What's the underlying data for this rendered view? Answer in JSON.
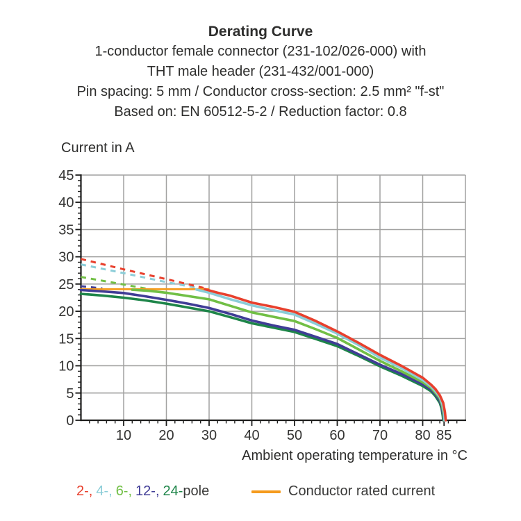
{
  "header": {
    "title": "Derating Curve",
    "line1": "1-conductor female connector (231-102/026-000) with",
    "line2": "THT male header (231-432/001-000)",
    "line3": "Pin spacing: 5 mm / Conductor cross-section: 2.5 mm² \"f-st\"",
    "line4": "Based on: EN 60512-5-2 / Reduction factor: 0.8"
  },
  "legend": {
    "pole_items": [
      {
        "label": "2-,",
        "color": "#e8402d"
      },
      {
        "label": "4-,",
        "color": "#8bcdd8"
      },
      {
        "label": "6-,",
        "color": "#71bf45"
      },
      {
        "label": "12-,",
        "color": "#403c96"
      },
      {
        "label": "24-",
        "color": "#1e8549"
      }
    ],
    "pole_suffix": "pole",
    "rated_label": "Conductor rated current",
    "rated_color": "#f59b1e"
  },
  "chart_data": {
    "type": "line",
    "title": "Derating Curve",
    "xlabel": "Ambient operating temperature in °C",
    "ylabel": "Current in A",
    "x_range": [
      0,
      90
    ],
    "y_range": [
      0,
      45
    ],
    "x_ticks": [
      10,
      20,
      30,
      40,
      50,
      60,
      70,
      80,
      85
    ],
    "y_ticks": [
      0,
      5,
      10,
      15,
      20,
      25,
      30,
      35,
      40,
      45
    ],
    "x_grid_step": 10,
    "y_grid_step": 5,
    "x_minor_step": 2,
    "y_minor_step": 1,
    "grid": true,
    "legend_position": "bottom",
    "colors": {
      "grid": "#a1a1a0",
      "axis": "#1c1c1b",
      "text": "#333332"
    },
    "series": [
      {
        "name": "conductor-rated-current",
        "label": "Conductor rated current",
        "color": "#f59b1e",
        "width": 2.8,
        "points": [
          [
            0,
            24.05
          ],
          [
            29.8,
            24.05
          ]
        ]
      },
      {
        "name": "24-pole",
        "label": "24-pole",
        "color": "#1e8549",
        "width": 3.6,
        "points": [
          [
            0,
            23.2
          ],
          [
            5,
            22.9
          ],
          [
            10,
            22.5
          ],
          [
            15,
            22.0
          ],
          [
            20,
            21.4
          ],
          [
            25,
            20.7
          ],
          [
            30,
            20.0
          ],
          [
            35,
            18.9
          ],
          [
            40,
            17.8
          ],
          [
            45,
            17.0
          ],
          [
            50,
            16.2
          ],
          [
            55,
            14.9
          ],
          [
            60,
            13.6
          ],
          [
            65,
            11.8
          ],
          [
            70,
            9.9
          ],
          [
            75,
            8.2
          ],
          [
            80,
            6.3
          ],
          [
            82,
            5.3
          ],
          [
            83,
            4.4
          ],
          [
            84,
            3.2
          ],
          [
            84.4,
            2.2
          ],
          [
            84.7,
            0.8
          ],
          [
            84.8,
            0
          ]
        ]
      },
      {
        "name": "12-pole",
        "label": "12-pole",
        "color": "#403c96",
        "width": 3.6,
        "dashed_points": [
          [
            0,
            24.6
          ],
          [
            5,
            24.2
          ]
        ],
        "points": [
          [
            0,
            23.9
          ],
          [
            5,
            23.65
          ],
          [
            10,
            23.35
          ],
          [
            15,
            22.75
          ],
          [
            20,
            22.1
          ],
          [
            25,
            21.4
          ],
          [
            30,
            20.6
          ],
          [
            35,
            19.5
          ],
          [
            40,
            18.3
          ],
          [
            45,
            17.4
          ],
          [
            50,
            16.6
          ],
          [
            55,
            15.3
          ],
          [
            60,
            14.0
          ],
          [
            65,
            12.1
          ],
          [
            70,
            10.2
          ],
          [
            75,
            8.5
          ],
          [
            80,
            6.6
          ],
          [
            82,
            5.6
          ],
          [
            83,
            4.7
          ],
          [
            84,
            3.6
          ],
          [
            84.4,
            2.6
          ],
          [
            84.8,
            1.0
          ],
          [
            84.9,
            0
          ]
        ]
      },
      {
        "name": "6-pole",
        "label": "6-pole",
        "color": "#71bf45",
        "width": 3.6,
        "dashed_points": [
          [
            0,
            26.3
          ],
          [
            8,
            25.2
          ],
          [
            16,
            24.05
          ]
        ],
        "points": [
          [
            12,
            23.95
          ],
          [
            16,
            23.75
          ],
          [
            20,
            23.4
          ],
          [
            25,
            22.8
          ],
          [
            30,
            22.2
          ],
          [
            35,
            21.0
          ],
          [
            40,
            19.8
          ],
          [
            45,
            19.0
          ],
          [
            50,
            18.2
          ],
          [
            55,
            16.7
          ],
          [
            60,
            15.1
          ],
          [
            65,
            13.0
          ],
          [
            70,
            10.9
          ],
          [
            75,
            9.0
          ],
          [
            80,
            7.0
          ],
          [
            82,
            5.9
          ],
          [
            83,
            5.0
          ],
          [
            84,
            4.0
          ],
          [
            84.5,
            2.8
          ],
          [
            84.9,
            1.2
          ],
          [
            85.0,
            0
          ]
        ]
      },
      {
        "name": "4-pole",
        "label": "4-pole",
        "color": "#8bcdd8",
        "width": 3.6,
        "dashed_points": [
          [
            0,
            28.6
          ],
          [
            10,
            27.0
          ],
          [
            20,
            25.35
          ],
          [
            29,
            24.05
          ]
        ],
        "points": [
          [
            27,
            24.0
          ],
          [
            30,
            23.4
          ],
          [
            35,
            22.2
          ],
          [
            40,
            21.1
          ],
          [
            45,
            20.2
          ],
          [
            50,
            19.4
          ],
          [
            55,
            17.7
          ],
          [
            60,
            15.9
          ],
          [
            65,
            13.8
          ],
          [
            70,
            11.5
          ],
          [
            75,
            9.6
          ],
          [
            80,
            7.4
          ],
          [
            82,
            6.2
          ],
          [
            83,
            5.3
          ],
          [
            84,
            4.3
          ],
          [
            84.6,
            3.0
          ],
          [
            85.0,
            1.4
          ],
          [
            85.1,
            0
          ]
        ]
      },
      {
        "name": "2-pole",
        "label": "2-pole",
        "color": "#e8402d",
        "width": 3.6,
        "dashed_points": [
          [
            0,
            29.6
          ],
          [
            10,
            27.7
          ],
          [
            20,
            25.9
          ],
          [
            30,
            24.05
          ]
        ],
        "points": [
          [
            29,
            24.05
          ],
          [
            32,
            23.4
          ],
          [
            35,
            22.85
          ],
          [
            40,
            21.6
          ],
          [
            45,
            20.8
          ],
          [
            50,
            19.9
          ],
          [
            55,
            18.2
          ],
          [
            60,
            16.3
          ],
          [
            65,
            14.2
          ],
          [
            70,
            12.0
          ],
          [
            75,
            10.0
          ],
          [
            80,
            7.8
          ],
          [
            82,
            6.5
          ],
          [
            83,
            5.7
          ],
          [
            84,
            4.6
          ],
          [
            84.8,
            3.2
          ],
          [
            85.2,
            1.5
          ],
          [
            85.4,
            0
          ]
        ]
      }
    ]
  }
}
